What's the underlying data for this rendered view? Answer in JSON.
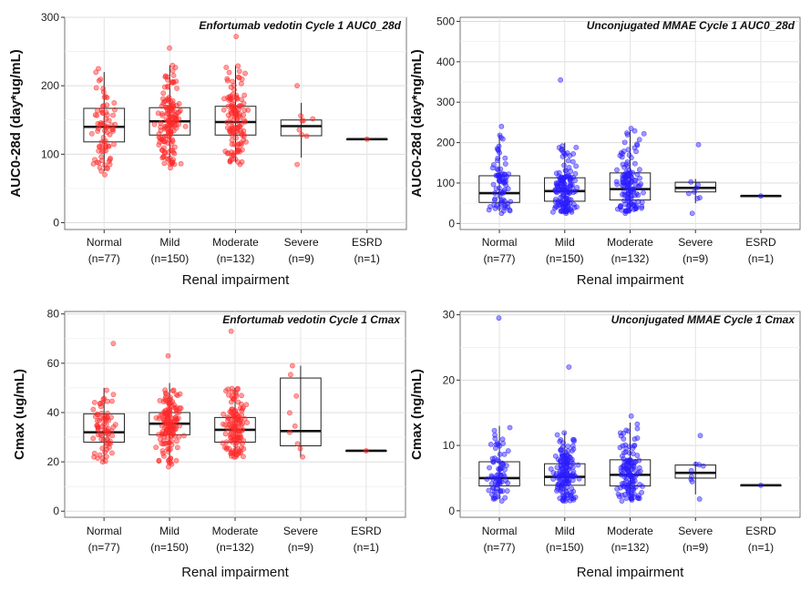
{
  "x_axis_title": "Renal impairment",
  "categories": [
    "Normal",
    "Mild",
    "Moderate",
    "Severe",
    "ESRD"
  ],
  "category_counts": [
    "(n=77)",
    "(n=150)",
    "(n=132)",
    "(n=9)",
    "(n=1)"
  ],
  "colors": {
    "ev": "#ff2a2a",
    "mmae": "#2b1cff"
  },
  "chart_data": [
    {
      "type": "box",
      "title": "Enfortumab vedotin Cycle 1 AUC0_28d",
      "ylabel": "AUC0-28d (day*ug/mL)",
      "xlabel": "Renal impairment",
      "ylim": [
        -10,
        300
      ],
      "yticks": [
        0,
        100,
        200,
        300
      ],
      "color": "#ff2a2a",
      "categories": [
        "Normal",
        "Mild",
        "Moderate",
        "Severe",
        "ESRD"
      ],
      "boxes": [
        {
          "q1": 118,
          "median": 140,
          "q3": 167,
          "whisker_low": 75,
          "whisker_high": 220,
          "min": 70,
          "max": 225,
          "n": 77
        },
        {
          "q1": 128,
          "median": 148,
          "q3": 168,
          "whisker_low": 85,
          "whisker_high": 230,
          "min": 80,
          "max": 255,
          "n": 150
        },
        {
          "q1": 128,
          "median": 147,
          "q3": 170,
          "whisker_low": 88,
          "whisker_high": 230,
          "min": 85,
          "max": 272,
          "n": 132
        },
        {
          "q1": 127,
          "median": 141,
          "q3": 150,
          "whisker_low": 95,
          "whisker_high": 175,
          "min": 85,
          "max": 200,
          "n": 9
        },
        {
          "q1": 122,
          "median": 122,
          "q3": 122,
          "whisker_low": 122,
          "whisker_high": 122,
          "min": 122,
          "max": 122,
          "n": 1
        }
      ]
    },
    {
      "type": "box",
      "title": "Unconjugated MMAE Cycle 1 AUC0_28d",
      "ylabel": "AUC0-28d (day*ng/mL)",
      "xlabel": "Renal impairment",
      "ylim": [
        -15,
        510
      ],
      "yticks": [
        0,
        100,
        200,
        300,
        400,
        500
      ],
      "color": "#2b1cff",
      "categories": [
        "Normal",
        "Mild",
        "Moderate",
        "Severe",
        "ESRD"
      ],
      "boxes": [
        {
          "q1": 52,
          "median": 75,
          "q3": 118,
          "whisker_low": 30,
          "whisker_high": 220,
          "min": 25,
          "max": 240,
          "n": 77
        },
        {
          "q1": 55,
          "median": 80,
          "q3": 113,
          "whisker_low": 28,
          "whisker_high": 200,
          "min": 25,
          "max": 355,
          "n": 150
        },
        {
          "q1": 58,
          "median": 85,
          "q3": 125,
          "whisker_low": 30,
          "whisker_high": 230,
          "min": 25,
          "max": 235,
          "n": 132
        },
        {
          "q1": 78,
          "median": 88,
          "q3": 102,
          "whisker_low": 50,
          "whisker_high": 110,
          "min": 25,
          "max": 195,
          "n": 9
        },
        {
          "q1": 68,
          "median": 68,
          "q3": 68,
          "whisker_low": 68,
          "whisker_high": 68,
          "min": 68,
          "max": 68,
          "n": 1
        }
      ]
    },
    {
      "type": "box",
      "title": "Enfortumab vedotin Cycle 1 Cmax",
      "ylabel": "Cmax (ug/mL)",
      "xlabel": "Renal impairment",
      "ylim": [
        -2.5,
        81
      ],
      "yticks": [
        0,
        20,
        40,
        60,
        80
      ],
      "color": "#ff2a2a",
      "categories": [
        "Normal",
        "Mild",
        "Moderate",
        "Severe",
        "ESRD"
      ],
      "boxes": [
        {
          "q1": 28,
          "median": 32,
          "q3": 39.5,
          "whisker_low": 20,
          "whisker_high": 50,
          "min": 20,
          "max": 68,
          "n": 77
        },
        {
          "q1": 31,
          "median": 35.5,
          "q3": 40,
          "whisker_low": 19,
          "whisker_high": 52,
          "min": 18,
          "max": 63,
          "n": 150
        },
        {
          "q1": 28,
          "median": 33,
          "q3": 38,
          "whisker_low": 22,
          "whisker_high": 50,
          "min": 22,
          "max": 73,
          "n": 132
        },
        {
          "q1": 26.5,
          "median": 32.5,
          "q3": 54,
          "whisker_low": 22,
          "whisker_high": 59,
          "min": 22,
          "max": 59,
          "n": 9
        },
        {
          "q1": 24.5,
          "median": 24.5,
          "q3": 24.5,
          "whisker_low": 24.5,
          "whisker_high": 24.5,
          "min": 24.5,
          "max": 24.5,
          "n": 1
        }
      ]
    },
    {
      "type": "box",
      "title": "Unconjugated MMAE Cycle 1 Cmax",
      "ylabel": "Cmax (ng/mL)",
      "xlabel": "Renal impairment",
      "ylim": [
        -1,
        30.5
      ],
      "yticks": [
        0,
        10,
        20,
        30
      ],
      "color": "#2b1cff",
      "categories": [
        "Normal",
        "Mild",
        "Moderate",
        "Severe",
        "ESRD"
      ],
      "boxes": [
        {
          "q1": 3.8,
          "median": 5.0,
          "q3": 7.5,
          "whisker_low": 1.8,
          "whisker_high": 13,
          "min": 1.5,
          "max": 29.5,
          "n": 77
        },
        {
          "q1": 3.9,
          "median": 5.2,
          "q3": 7.2,
          "whisker_low": 1.5,
          "whisker_high": 12,
          "min": 1.5,
          "max": 22,
          "n": 150
        },
        {
          "q1": 3.8,
          "median": 5.5,
          "q3": 7.8,
          "whisker_low": 1.5,
          "whisker_high": 13.5,
          "min": 1.5,
          "max": 14.5,
          "n": 132
        },
        {
          "q1": 5.0,
          "median": 5.8,
          "q3": 7.0,
          "whisker_low": 2.5,
          "whisker_high": 7.5,
          "min": 1.8,
          "max": 11.5,
          "n": 9
        },
        {
          "q1": 3.9,
          "median": 3.9,
          "q3": 3.9,
          "whisker_low": 3.9,
          "whisker_high": 3.9,
          "min": 3.9,
          "max": 3.9,
          "n": 1
        }
      ]
    }
  ]
}
